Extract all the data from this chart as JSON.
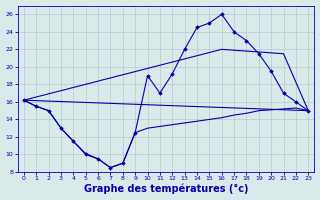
{
  "bg_color": "#daeaea",
  "grid_color": "#b0cccc",
  "line_color": "#0000aa",
  "xlabel": "Graphe des températures (°c)",
  "xlabel_fontsize": 7,
  "ylim": [
    8,
    27
  ],
  "xlim": [
    -0.5,
    23.5
  ],
  "yticks": [
    8,
    10,
    12,
    14,
    16,
    18,
    20,
    22,
    24,
    26
  ],
  "xticks": [
    0,
    1,
    2,
    3,
    4,
    5,
    6,
    7,
    8,
    9,
    10,
    11,
    12,
    13,
    14,
    15,
    16,
    17,
    18,
    19,
    20,
    21,
    22,
    23
  ],
  "series": {
    "curve_max": {
      "x": [
        0,
        1,
        2,
        3,
        4,
        5,
        6,
        7,
        8,
        9,
        10,
        11,
        12,
        13,
        14,
        15,
        16,
        17,
        18,
        19,
        20,
        21,
        22,
        23
      ],
      "y": [
        16.2,
        15.5,
        15.0,
        13.0,
        11.5,
        10.1,
        9.5,
        8.5,
        9.0,
        12.5,
        19.0,
        17.0,
        19.2,
        22.0,
        24.5,
        25.0,
        26.0,
        24.0,
        23.0,
        21.5,
        19.5,
        17.0,
        16.0,
        15.0
      ]
    },
    "straight1": {
      "x": [
        0,
        16,
        21,
        23
      ],
      "y": [
        16.2,
        22.0,
        21.5,
        15.0
      ]
    },
    "straight2": {
      "x": [
        0,
        23
      ],
      "y": [
        16.2,
        15.0
      ]
    },
    "curve_min": {
      "x": [
        0,
        1,
        2,
        3,
        4,
        5,
        6,
        7,
        8,
        9,
        10,
        11,
        12,
        13,
        14,
        15,
        16,
        17,
        18,
        19,
        20,
        21,
        22,
        23
      ],
      "y": [
        16.2,
        15.5,
        15.0,
        13.0,
        11.5,
        10.0,
        9.5,
        8.5,
        9.0,
        12.5,
        13.0,
        13.2,
        13.4,
        13.6,
        13.8,
        14.0,
        14.2,
        14.5,
        14.7,
        15.0,
        15.1,
        15.2,
        15.3,
        15.0
      ]
    }
  }
}
